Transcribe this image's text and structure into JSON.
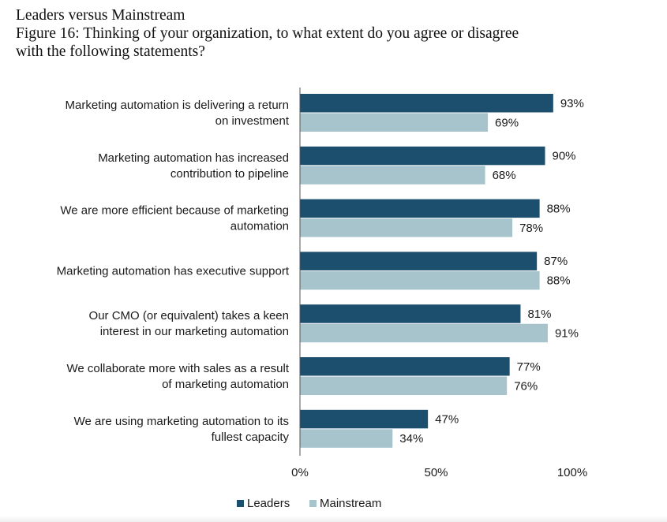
{
  "header": {
    "title": "Leaders versus Mainstream",
    "subtitle_line1": "Figure 16: Thinking of your organization, to what extent do you agree or disagree",
    "subtitle_line2": "with the following statements?"
  },
  "colors": {
    "leaders": "#1c4e6e",
    "mainstream": "#a7c4cc",
    "axis": "#555555"
  },
  "chart_data": {
    "type": "bar",
    "orientation": "horizontal",
    "title": "Leaders versus Mainstream",
    "subtitle": "Figure 16: Thinking of your organization, to what extent do you agree or disagree with the following statements?",
    "categories": [
      [
        "Marketing automation is delivering a return",
        "on investment"
      ],
      [
        "Marketing automation has increased",
        "contribution to pipeline"
      ],
      [
        "We are more efficient because of marketing",
        "automation"
      ],
      [
        "Marketing automation has executive support"
      ],
      [
        "Our CMO (or equivalent) takes a keen",
        "interest in our marketing automation"
      ],
      [
        "We collaborate more with sales as a result",
        "of marketing automation"
      ],
      [
        "We are using marketing automation to its",
        "fullest capacity"
      ]
    ],
    "series": [
      {
        "name": "Leaders",
        "values": [
          93,
          90,
          88,
          87,
          81,
          77,
          47
        ],
        "labels": [
          "93%",
          "90%",
          "88%",
          "87%",
          "81%",
          "77%",
          "47%"
        ]
      },
      {
        "name": "Mainstream",
        "values": [
          69,
          68,
          78,
          88,
          91,
          76,
          34
        ],
        "labels": [
          "69%",
          "68%",
          "78%",
          "88%",
          "91%",
          "76%",
          "34%"
        ]
      }
    ],
    "xlim": [
      0,
      100
    ],
    "xticks": [
      0,
      50,
      100
    ],
    "xtick_labels": [
      "0%",
      "50%",
      "100%"
    ],
    "grid": false,
    "legend_position": "bottom-center"
  }
}
